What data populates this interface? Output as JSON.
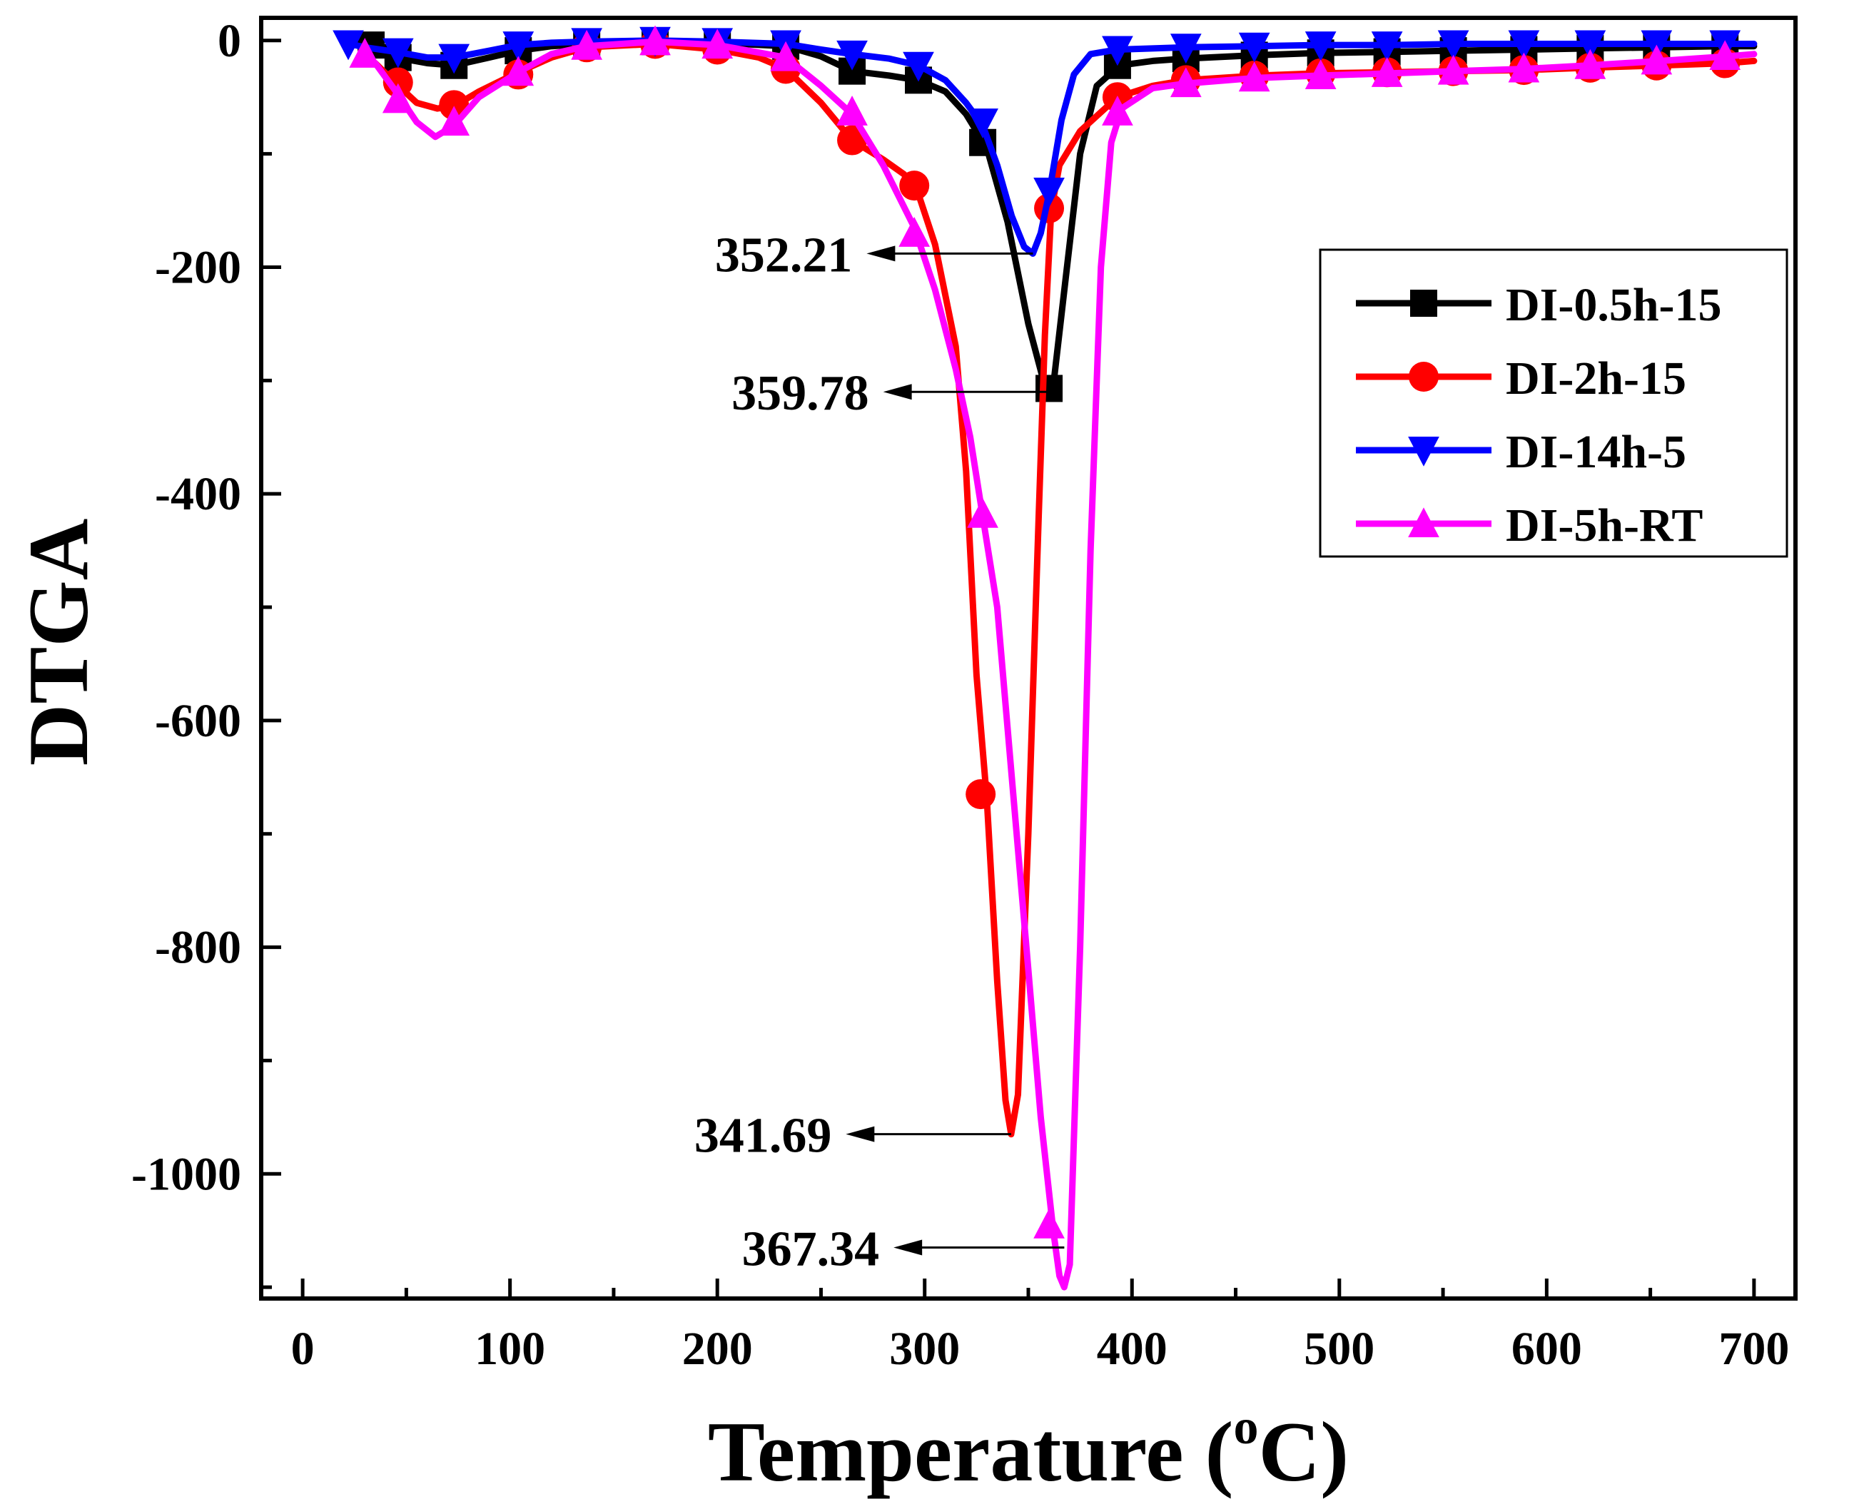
{
  "chart_data": {
    "type": "line",
    "title": "",
    "xlabel": "Temperature",
    "xlabel_unit_sup": "o",
    "xlabel_unit": "C",
    "xlabel_open": "(",
    "xlabel_close": ")",
    "ylabel": "DTGA",
    "xlim": [
      -20,
      720
    ],
    "ylim": [
      -1110,
      20
    ],
    "x_ticks": [
      0,
      100,
      200,
      300,
      400,
      500,
      600,
      700
    ],
    "y_ticks": [
      0,
      -200,
      -400,
      -600,
      -800,
      -1000
    ],
    "x_tick_labels": [
      "0",
      "100",
      "200",
      "300",
      "400",
      "500",
      "600",
      "700"
    ],
    "y_tick_labels": [
      "0",
      "-200",
      "-400",
      "-600",
      "-800",
      "-1000"
    ],
    "legend_position": "top-right",
    "grid": false,
    "series": [
      {
        "name": "DI-0.5h-15",
        "color": "#000000",
        "marker": "square",
        "curve": [
          [
            30,
            -3
          ],
          [
            45,
            -15
          ],
          [
            60,
            -20
          ],
          [
            73,
            -22
          ],
          [
            90,
            -15
          ],
          [
            104,
            -9
          ],
          [
            120,
            -5
          ],
          [
            137,
            -3
          ],
          [
            170,
            -1
          ],
          [
            200,
            -2
          ],
          [
            233,
            -5
          ],
          [
            250,
            -14
          ],
          [
            265,
            -27
          ],
          [
            283,
            -31
          ],
          [
            297,
            -35
          ],
          [
            310,
            -45
          ],
          [
            320,
            -65
          ],
          [
            330,
            -95
          ],
          [
            340,
            -160
          ],
          [
            350,
            -250
          ],
          [
            358,
            -305
          ],
          [
            362,
            -305
          ],
          [
            368,
            -210
          ],
          [
            375,
            -100
          ],
          [
            383,
            -40
          ],
          [
            394,
            -22
          ],
          [
            410,
            -18
          ],
          [
            425,
            -16
          ],
          [
            460,
            -13
          ],
          [
            490,
            -11
          ],
          [
            525,
            -10
          ],
          [
            555,
            -9
          ],
          [
            590,
            -8
          ],
          [
            620,
            -7
          ],
          [
            655,
            -6
          ],
          [
            687,
            -5
          ],
          [
            700,
            -5
          ]
        ],
        "markers": [
          [
            33,
            -4
          ],
          [
            46,
            -15
          ],
          [
            73,
            -22
          ],
          [
            104,
            -9
          ],
          [
            137,
            -3
          ],
          [
            170,
            -1
          ],
          [
            200,
            -2
          ],
          [
            233,
            -5
          ],
          [
            265,
            -27
          ],
          [
            297,
            -35
          ],
          [
            328,
            -90
          ],
          [
            360,
            -307
          ],
          [
            393,
            -22
          ],
          [
            426,
            -16
          ],
          [
            459,
            -13
          ],
          [
            491,
            -11
          ],
          [
            523,
            -10
          ],
          [
            555,
            -9
          ],
          [
            589,
            -8
          ],
          [
            621,
            -7
          ],
          [
            653,
            -6
          ],
          [
            686,
            -5
          ]
        ]
      },
      {
        "name": "DI-2h-15",
        "color": "#ff0000",
        "marker": "circle",
        "curve": [
          [
            28,
            -10
          ],
          [
            35,
            -20
          ],
          [
            45,
            -38
          ],
          [
            55,
            -55
          ],
          [
            65,
            -60
          ],
          [
            73,
            -58
          ],
          [
            85,
            -45
          ],
          [
            104,
            -28
          ],
          [
            120,
            -15
          ],
          [
            137,
            -6
          ],
          [
            170,
            -3
          ],
          [
            200,
            -8
          ],
          [
            220,
            -15
          ],
          [
            233,
            -25
          ],
          [
            250,
            -55
          ],
          [
            265,
            -88
          ],
          [
            280,
            -105
          ],
          [
            290,
            -118
          ],
          [
            296,
            -130
          ],
          [
            305,
            -180
          ],
          [
            315,
            -270
          ],
          [
            320,
            -380
          ],
          [
            325,
            -560
          ],
          [
            330,
            -670
          ],
          [
            335,
            -830
          ],
          [
            339,
            -935
          ],
          [
            341.7,
            -965
          ],
          [
            345,
            -930
          ],
          [
            350,
            -700
          ],
          [
            355,
            -420
          ],
          [
            358,
            -260
          ],
          [
            361,
            -150
          ],
          [
            365,
            -110
          ],
          [
            375,
            -80
          ],
          [
            393,
            -50
          ],
          [
            410,
            -40
          ],
          [
            426,
            -35
          ],
          [
            460,
            -31
          ],
          [
            490,
            -29
          ],
          [
            525,
            -28
          ],
          [
            555,
            -27
          ],
          [
            590,
            -26
          ],
          [
            620,
            -24
          ],
          [
            655,
            -22
          ],
          [
            687,
            -20
          ],
          [
            700,
            -18
          ]
        ],
        "markers": [
          [
            46,
            -37
          ],
          [
            73,
            -57
          ],
          [
            104,
            -30
          ],
          [
            137,
            -6
          ],
          [
            170,
            -3
          ],
          [
            200,
            -8
          ],
          [
            233,
            -25
          ],
          [
            265,
            -88
          ],
          [
            295,
            -128
          ],
          [
            327,
            -665
          ],
          [
            360,
            -148
          ],
          [
            393,
            -50
          ],
          [
            426,
            -35
          ],
          [
            459,
            -31
          ],
          [
            491,
            -29
          ],
          [
            523,
            -28
          ],
          [
            555,
            -27
          ],
          [
            589,
            -26
          ],
          [
            621,
            -24
          ],
          [
            653,
            -22
          ],
          [
            686,
            -20
          ]
        ]
      },
      {
        "name": "DI-14h-5",
        "color": "#0000ff",
        "marker": "triangle-down",
        "curve": [
          [
            20,
            -2
          ],
          [
            30,
            -6
          ],
          [
            45,
            -10
          ],
          [
            60,
            -15
          ],
          [
            73,
            -15
          ],
          [
            90,
            -9
          ],
          [
            104,
            -4
          ],
          [
            120,
            -2
          ],
          [
            137,
            -1
          ],
          [
            170,
            0
          ],
          [
            200,
            -1
          ],
          [
            233,
            -3
          ],
          [
            250,
            -8
          ],
          [
            265,
            -12
          ],
          [
            283,
            -16
          ],
          [
            297,
            -22
          ],
          [
            310,
            -35
          ],
          [
            320,
            -55
          ],
          [
            328,
            -75
          ],
          [
            335,
            -110
          ],
          [
            342,
            -155
          ],
          [
            348,
            -182
          ],
          [
            352.2,
            -188
          ],
          [
            356,
            -170
          ],
          [
            360,
            -135
          ],
          [
            366,
            -70
          ],
          [
            372,
            -30
          ],
          [
            380,
            -12
          ],
          [
            393,
            -8
          ],
          [
            426,
            -6
          ],
          [
            460,
            -5
          ],
          [
            490,
            -4
          ],
          [
            525,
            -4
          ],
          [
            560,
            -3
          ],
          [
            590,
            -3
          ],
          [
            620,
            -3
          ],
          [
            655,
            -3
          ],
          [
            687,
            -3
          ],
          [
            700,
            -3
          ]
        ],
        "markers": [
          [
            22,
            -3
          ],
          [
            46,
            -10
          ],
          [
            73,
            -15
          ],
          [
            104,
            -4
          ],
          [
            137,
            -1
          ],
          [
            170,
            0
          ],
          [
            200,
            -1
          ],
          [
            233,
            -3
          ],
          [
            265,
            -12
          ],
          [
            297,
            -22
          ],
          [
            328,
            -72
          ],
          [
            360,
            -133
          ],
          [
            393,
            -8
          ],
          [
            426,
            -6
          ],
          [
            459,
            -5
          ],
          [
            491,
            -4
          ],
          [
            523,
            -4
          ],
          [
            555,
            -3
          ],
          [
            589,
            -3
          ],
          [
            621,
            -3
          ],
          [
            653,
            -3
          ],
          [
            686,
            -3
          ]
        ]
      },
      {
        "name": "DI-5h-RT",
        "color": "#ff00ff",
        "marker": "triangle-up",
        "curve": [
          [
            28,
            -10
          ],
          [
            35,
            -20
          ],
          [
            45,
            -45
          ],
          [
            55,
            -72
          ],
          [
            64,
            -85
          ],
          [
            73,
            -75
          ],
          [
            85,
            -50
          ],
          [
            104,
            -28
          ],
          [
            120,
            -12
          ],
          [
            137,
            -5
          ],
          [
            170,
            -1
          ],
          [
            200,
            -4
          ],
          [
            233,
            -15
          ],
          [
            250,
            -40
          ],
          [
            265,
            -65
          ],
          [
            280,
            -110
          ],
          [
            295,
            -165
          ],
          [
            305,
            -220
          ],
          [
            315,
            -290
          ],
          [
            322,
            -350
          ],
          [
            328,
            -420
          ],
          [
            335,
            -500
          ],
          [
            342,
            -650
          ],
          [
            350,
            -820
          ],
          [
            356,
            -950
          ],
          [
            362,
            -1050
          ],
          [
            365,
            -1090
          ],
          [
            367.3,
            -1100
          ],
          [
            370,
            -1080
          ],
          [
            375,
            -800
          ],
          [
            380,
            -450
          ],
          [
            385,
            -200
          ],
          [
            390,
            -90
          ],
          [
            395,
            -60
          ],
          [
            410,
            -42
          ],
          [
            426,
            -38
          ],
          [
            460,
            -33
          ],
          [
            490,
            -31
          ],
          [
            525,
            -29
          ],
          [
            555,
            -27
          ],
          [
            590,
            -25
          ],
          [
            620,
            -22
          ],
          [
            655,
            -18
          ],
          [
            687,
            -14
          ],
          [
            700,
            -12
          ]
        ],
        "markers": [
          [
            30,
            -12
          ],
          [
            46,
            -52
          ],
          [
            73,
            -72
          ],
          [
            104,
            -28
          ],
          [
            137,
            -5
          ],
          [
            170,
            -1
          ],
          [
            200,
            -4
          ],
          [
            233,
            -15
          ],
          [
            265,
            -63
          ],
          [
            295,
            -170
          ],
          [
            328,
            -418
          ],
          [
            360,
            -1045
          ],
          [
            393,
            -63
          ],
          [
            426,
            -38
          ],
          [
            459,
            -33
          ],
          [
            491,
            -31
          ],
          [
            523,
            -29
          ],
          [
            555,
            -27
          ],
          [
            589,
            -25
          ],
          [
            621,
            -22
          ],
          [
            653,
            -18
          ],
          [
            686,
            -14
          ]
        ]
      }
    ],
    "annotations": [
      {
        "text": "352.21",
        "x_from": 352.21,
        "y": -188,
        "x_to": 272
      },
      {
        "text": "359.78",
        "x_from": 359.78,
        "y": -310,
        "x_to": 280
      },
      {
        "text": "341.69",
        "x_from": 341.69,
        "y": -965,
        "x_to": 262
      },
      {
        "text": "367.34",
        "x_from": 367.34,
        "y": -1065,
        "x_to": 285
      }
    ]
  }
}
